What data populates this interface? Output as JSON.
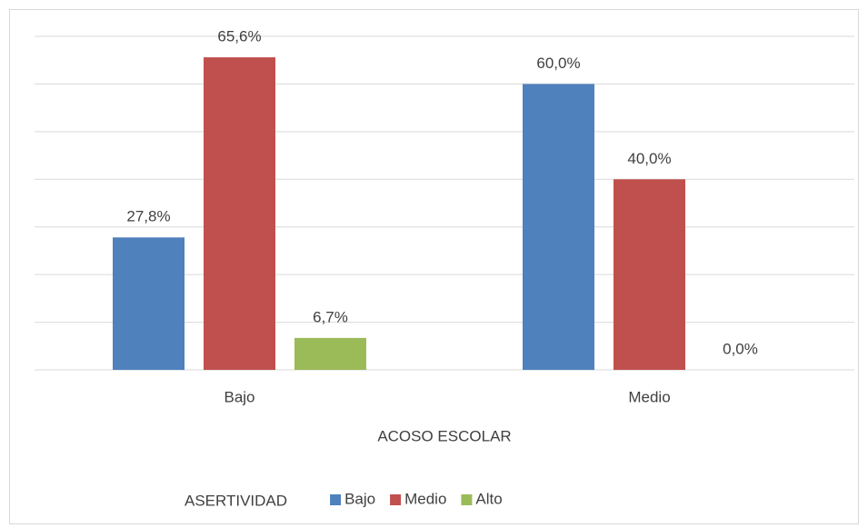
{
  "chart_data": {
    "type": "bar",
    "categories": [
      "Bajo",
      "Medio"
    ],
    "series": [
      {
        "name": "Bajo",
        "color": "#4f81bd",
        "values": [
          27.8,
          60.0
        ],
        "value_labels": [
          "27,8%",
          "60,0%"
        ]
      },
      {
        "name": "Medio",
        "color": "#c0504d",
        "values": [
          65.6,
          40.0
        ],
        "value_labels": [
          "65,6%",
          "40,0%"
        ]
      },
      {
        "name": "Alto",
        "color": "#9bbb59",
        "values": [
          6.7,
          0.0
        ],
        "value_labels": [
          "6,7%",
          "0,0%"
        ]
      }
    ],
    "xlabel": "ACOSO ESCOLAR",
    "legend_title": "ASERTIVIDAD",
    "legend": "bottom",
    "ylim": [
      0,
      70
    ],
    "yticks": [
      0,
      10,
      20,
      30,
      40,
      50,
      60,
      70
    ],
    "grid": true,
    "yaxis_labels": false
  }
}
